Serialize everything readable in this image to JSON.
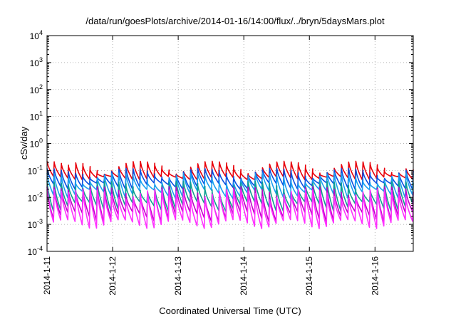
{
  "chart_data": {
    "type": "line",
    "title": "/data/run/goesPlots/archive/2014-01-16/14:00/flux/../bryn/5daysMars.plot",
    "xlabel": "Coordinated Universal Time (UTC)",
    "ylabel": "cSv/day",
    "yscale": "log",
    "ylim": [
      0.0001,
      10000
    ],
    "y_ticks": [
      {
        "base": "10",
        "exp": "-4"
      },
      {
        "base": "10",
        "exp": "-3"
      },
      {
        "base": "10",
        "exp": "-2"
      },
      {
        "base": "10",
        "exp": "-1"
      },
      {
        "base": "10",
        "exp": "0"
      },
      {
        "base": "10",
        "exp": "1"
      },
      {
        "base": "10",
        "exp": "2"
      },
      {
        "base": "10",
        "exp": "3"
      },
      {
        "base": "10",
        "exp": "4"
      }
    ],
    "xlim": [
      "2014-01-11T00:00",
      "2014-01-16T14:00"
    ],
    "x_ticks": [
      "2014-1-11",
      "2014-1-12",
      "2014-1-13",
      "2014-1-14",
      "2014-1-15",
      "2014-1-16"
    ],
    "grid": true,
    "legend": "none",
    "series": [
      {
        "color": "#e8000b",
        "peak_range": [
          0.07,
          0.22
        ],
        "trough_range": [
          0.045,
          0.06
        ]
      },
      {
        "color": "#0a4fe0",
        "peak_range": [
          0.05,
          0.12
        ],
        "trough_range": [
          0.02,
          0.035
        ]
      },
      {
        "color": "#1aa0f0",
        "peak_range": [
          0.03,
          0.08
        ],
        "trough_range": [
          0.009,
          0.02
        ]
      },
      {
        "color": "#10a090",
        "peak_range": [
          0.015,
          0.04
        ],
        "trough_range": [
          0.003,
          0.007
        ]
      },
      {
        "color": "#c000c8",
        "peak_range": [
          0.01,
          0.025
        ],
        "trough_range": [
          0.0012,
          0.003
        ]
      },
      {
        "color": "#ff30ff",
        "peak_range": [
          0.008,
          0.02
        ],
        "trough_range": [
          0.0007,
          0.0015
        ]
      }
    ]
  }
}
